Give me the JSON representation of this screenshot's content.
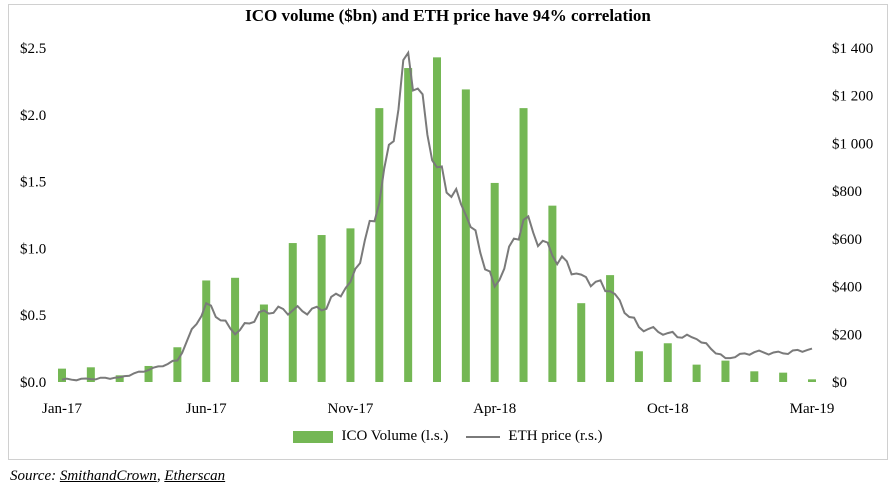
{
  "chart_data": {
    "type": "bar+line",
    "title": "ICO volume ($bn) and ETH price have 94% correlation",
    "x_tick_labels": [
      "Jan-17",
      "Jun-17",
      "Nov-17",
      "Apr-18",
      "Oct-18",
      "Mar-19"
    ],
    "left_axis": {
      "ylim": [
        0,
        2.5
      ],
      "ticks": [
        "$0.0",
        "$0.5",
        "$1.0",
        "$1.5",
        "$2.0",
        "$2.5"
      ]
    },
    "right_axis": {
      "ylim": [
        0,
        1400
      ],
      "ticks": [
        "$0",
        "$200",
        "$400",
        "$600",
        "$800",
        "$1 000",
        "$1 200",
        "$1 400"
      ]
    },
    "legend_position": "bottom",
    "colors": {
      "bar": "#74b754",
      "line": "#7a7a7a"
    },
    "series": [
      {
        "name": "ICO Volume (l.s.)",
        "type": "bar",
        "axis": "left",
        "months": [
          "Jan-17",
          "Feb-17",
          "Mar-17",
          "Apr-17",
          "May-17",
          "Jun-17",
          "Jul-17",
          "Aug-17",
          "Sep-17",
          "Oct-17",
          "Nov-17",
          "Dec-17",
          "Jan-18",
          "Feb-18",
          "Mar-18",
          "Apr-18",
          "May-18",
          "Jun-18",
          "Jul-18",
          "Aug-18",
          "Sep-18",
          "Oct-18",
          "Nov-18",
          "Dec-18",
          "Jan-19",
          "Feb-19",
          "Mar-19"
        ],
        "values": [
          0.1,
          0.11,
          0.05,
          0.12,
          0.26,
          0.76,
          0.78,
          0.58,
          1.04,
          1.1,
          1.15,
          2.05,
          2.35,
          2.43,
          2.19,
          1.49,
          2.05,
          1.32,
          0.59,
          0.8,
          0.23,
          0.29,
          0.13,
          0.16,
          0.08,
          0.07,
          0.02
        ]
      },
      {
        "name": "ETH price (r.s.)",
        "type": "line",
        "axis": "right",
        "x": [
          "Jan-17",
          "Feb-17",
          "Mar-17",
          "Apr-17",
          "May-17",
          "Jun-17",
          "Jul-17",
          "Aug-17",
          "Sep-17",
          "Oct-17",
          "Nov-17",
          "Dec-17",
          "Jan-18",
          "Feb-18",
          "Mar-18",
          "Apr-18",
          "May-18",
          "Jun-18",
          "Jul-18",
          "Aug-18",
          "Sep-18",
          "Oct-18",
          "Nov-18",
          "Dec-18",
          "Jan-19",
          "Feb-19",
          "Mar-19"
        ],
        "values": [
          10,
          12,
          20,
          50,
          90,
          330,
          200,
          300,
          300,
          300,
          420,
          750,
          1380,
          900,
          700,
          400,
          680,
          530,
          450,
          380,
          230,
          205,
          180,
          100,
          125,
          120,
          140
        ]
      }
    ]
  },
  "legend": {
    "bar_label": "ICO Volume (l.s.)",
    "line_label": "ETH price (r.s.)"
  },
  "source": {
    "prefix": "Source:",
    "link1": "SmithandCrown",
    "separator": ",",
    "link2": "Etherscan"
  }
}
